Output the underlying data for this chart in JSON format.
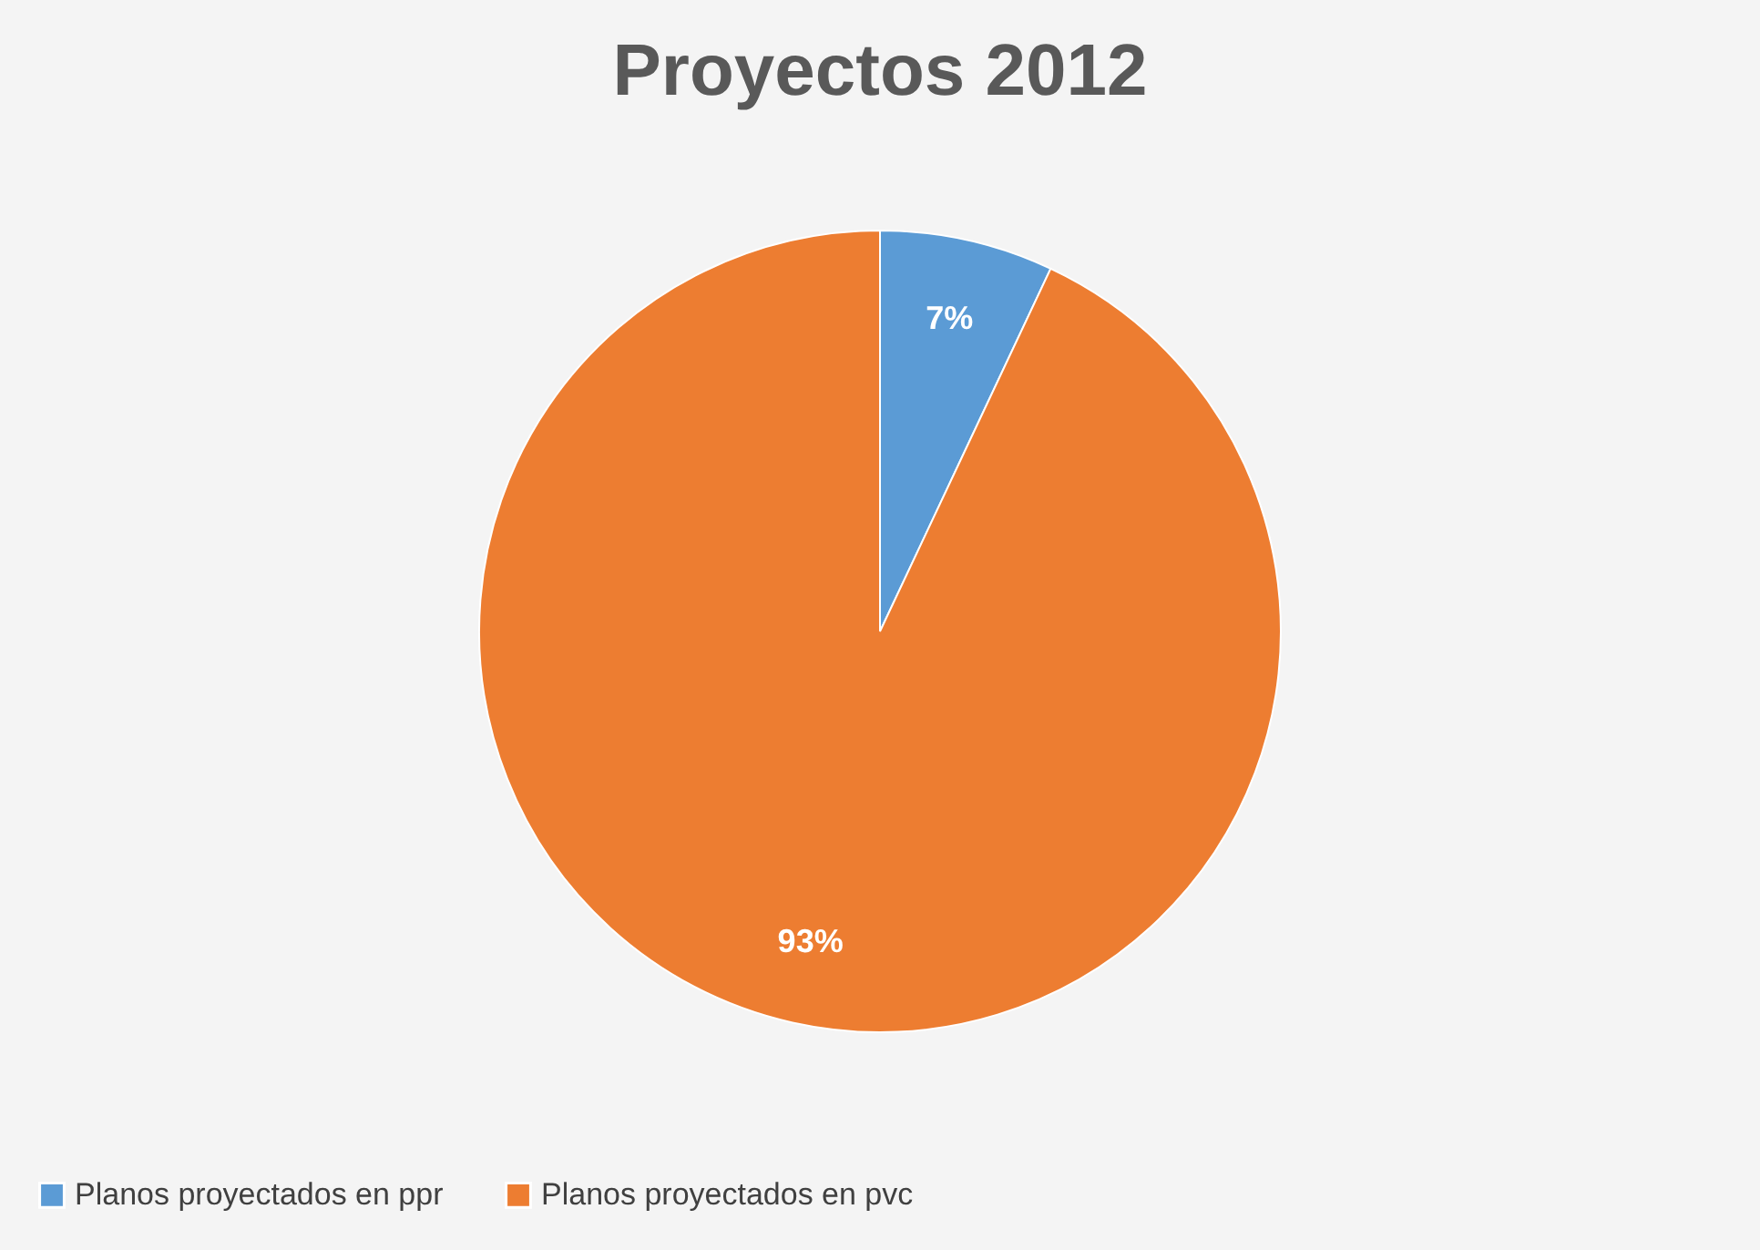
{
  "chart_data": {
    "type": "pie",
    "title": "Proyectos 2012",
    "categories": [
      "Planos proyectados en ppr",
      "Planos proyectados en pvc"
    ],
    "values": [
      7,
      93
    ],
    "colors": [
      "#5b9bd5",
      "#ed7d31"
    ],
    "value_labels": [
      "7%",
      "93%"
    ],
    "legend": "bottom"
  }
}
